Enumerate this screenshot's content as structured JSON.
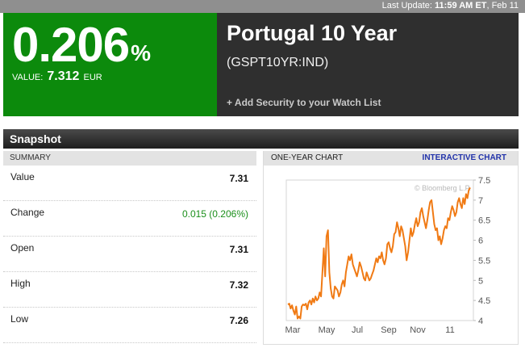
{
  "header": {
    "last_update_label": "Last Update:",
    "last_update_time": "11:59 AM ET",
    "last_update_date": ", Feb 11"
  },
  "quote": {
    "yield": "0.206",
    "percent_sign": "%",
    "value_label": "VALUE:",
    "value": "7.312",
    "currency": "EUR",
    "green_color": "#0c8a0c",
    "name": "Portugal 10 Year",
    "ticker": "(GSPT10YR:IND)",
    "watchlist_link": "+ Add Security to your Watch List"
  },
  "snapshot": {
    "title": "Snapshot",
    "summary_header": "SUMMARY",
    "rows": [
      {
        "label": "Value",
        "value": "7.31"
      },
      {
        "label": "Change",
        "value": "0.015 (0.206%)",
        "positive": true
      },
      {
        "label": "Open",
        "value": "7.31"
      },
      {
        "label": "High",
        "value": "7.32"
      },
      {
        "label": "Low",
        "value": "7.26"
      }
    ]
  },
  "chart_panel": {
    "header": "ONE-YEAR CHART",
    "interactive_link": "INTERACTIVE CHART",
    "watermark": "© Bloomberg L.P."
  },
  "chart_data": {
    "type": "line",
    "title": "",
    "xlabel": "",
    "ylabel": "",
    "line_color": "#f07a14",
    "ylim": [
      4,
      7.5
    ],
    "y_ticks": [
      "4",
      "4.5",
      "5",
      "5.5",
      "6",
      "6.5",
      "7",
      "7.5"
    ],
    "x_ticks": [
      "Mar",
      "May",
      "Jul",
      "Sep",
      "Nov",
      "11"
    ],
    "grid": false,
    "series": [
      {
        "values": [
          4.4,
          4.42,
          4.3,
          4.38,
          4.25,
          4.15,
          4.35,
          4.05,
          4.1,
          4.05,
          4.35,
          4.4,
          4.38,
          4.42,
          4.28,
          4.45,
          4.5,
          4.4,
          4.55,
          4.45,
          4.6,
          4.5,
          4.55,
          4.7,
          4.6,
          5.2,
          5.8,
          5.1,
          6.1,
          6.25,
          5.2,
          4.8,
          4.6,
          4.55,
          4.85,
          4.8,
          4.75,
          4.6,
          4.7,
          4.9,
          5.0,
          4.85,
          5.2,
          5.4,
          5.6,
          5.5,
          5.65,
          5.4,
          5.3,
          5.2,
          5.1,
          5.25,
          5.45,
          5.35,
          5.2,
          5.05,
          5.0,
          5.2,
          5.1,
          5.0,
          5.05,
          5.15,
          5.25,
          5.4,
          5.55,
          5.45,
          5.6,
          5.55,
          5.7,
          5.5,
          5.4,
          5.55,
          5.9,
          5.95,
          5.8,
          5.7,
          5.85,
          6.15,
          6.2,
          6.45,
          6.3,
          6.1,
          6.35,
          6.25,
          6.05,
          5.85,
          5.5,
          5.7,
          6.0,
          6.3,
          6.1,
          6.2,
          6.4,
          6.55,
          6.35,
          6.45,
          6.7,
          6.8,
          6.6,
          6.45,
          6.3,
          6.5,
          6.75,
          6.95,
          7.0,
          6.7,
          6.4,
          6.25,
          6.3,
          6.0,
          6.1,
          5.9,
          6.05,
          6.25,
          6.35,
          6.3,
          6.55,
          6.5,
          6.7,
          6.85,
          6.75,
          6.6,
          6.7,
          6.95,
          7.05,
          6.9,
          6.8,
          7.05,
          6.9,
          7.15,
          7.05,
          7.25,
          7.31
        ]
      }
    ]
  }
}
